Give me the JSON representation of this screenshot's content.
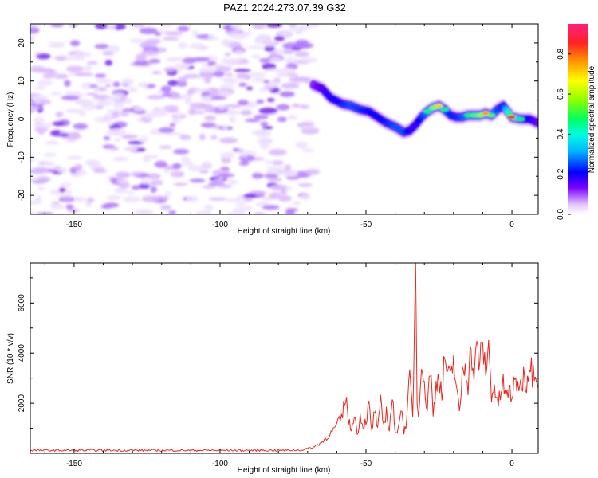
{
  "title": "PAZ1.2024.273.07.39.G32",
  "chart_data": [
    {
      "type": "heatmap",
      "xlabel": "Height of straight line (km)",
      "ylabel": "Frequency (Hz)",
      "xlim": [
        -165,
        9
      ],
      "ylim": [
        -25,
        25
      ],
      "xticks": [
        -150,
        -100,
        -50,
        0
      ],
      "yticks": [
        -20,
        -10,
        0,
        10,
        20
      ],
      "colorbar": {
        "label": "Normalized spectral amplitude",
        "range": [
          0.0,
          0.95
        ],
        "ticks": [
          0.0,
          0.2,
          0.4,
          0.6,
          0.8
        ]
      },
      "noise_region_x": [
        -165,
        -68
      ],
      "ridge": {
        "x": [
          -68,
          -65,
          -62,
          -58,
          -55,
          -52,
          -49,
          -46,
          -43,
          -40,
          -37,
          -35,
          -33,
          -31,
          -29,
          -27,
          -25,
          -23,
          -21,
          -19,
          -17,
          -15,
          -13,
          -11,
          -9,
          -7,
          -5,
          -3,
          0,
          3,
          6,
          9
        ],
        "frequency": [
          9.0,
          8.0,
          5.5,
          4.0,
          3.5,
          2.5,
          2.0,
          0.5,
          -1.0,
          -2.0,
          -3.5,
          -3.0,
          -1.5,
          0.5,
          2.0,
          3.0,
          3.5,
          2.5,
          1.0,
          0.5,
          0.5,
          1.0,
          1.0,
          1.0,
          1.5,
          1.0,
          2.5,
          3.5,
          0.5,
          0.0,
          0.0,
          -1.0
        ],
        "amplitude": [
          0.2,
          0.28,
          0.35,
          0.4,
          0.45,
          0.42,
          0.38,
          0.35,
          0.4,
          0.45,
          0.45,
          0.35,
          0.3,
          0.4,
          0.5,
          0.6,
          0.75,
          0.5,
          0.4,
          0.4,
          0.45,
          0.5,
          0.55,
          0.6,
          0.8,
          0.55,
          0.45,
          0.4,
          0.9,
          0.5,
          0.35,
          0.25
        ]
      }
    },
    {
      "type": "line",
      "xlabel": "Height of straight line (km)",
      "ylabel": "SNR (10 * v/v)",
      "xlim": [
        -165,
        9
      ],
      "ylim": [
        0,
        7600
      ],
      "xticks": [
        -150,
        -100,
        -50,
        0
      ],
      "yticks": [
        2000,
        4000,
        6000
      ],
      "color": "#e8281e",
      "series": [
        {
          "x": [
            -165,
            -120,
            -80,
            -72,
            -68,
            -65,
            -62,
            -60,
            -58,
            -57,
            -56,
            -55,
            -54,
            -53,
            -52,
            -51,
            -50,
            -49,
            -48,
            -47,
            -46,
            -45,
            -44,
            -43,
            -42,
            -41,
            -40,
            -39,
            -38,
            -37,
            -36,
            -35,
            -34,
            -33,
            -32.5,
            -32,
            -31,
            -30,
            -29,
            -28,
            -27,
            -26,
            -25,
            -24,
            -23,
            -22,
            -21,
            -20,
            -19,
            -18,
            -17,
            -16,
            -15,
            -14,
            -13,
            -12,
            -11,
            -10,
            -9,
            -8,
            -7,
            -6,
            -5,
            -4,
            -3,
            -2,
            -1,
            0,
            1,
            2,
            3,
            4,
            5,
            6,
            7,
            8,
            9
          ],
          "values": [
            120,
            120,
            120,
            130,
            250,
            450,
            800,
            1100,
            1500,
            2400,
            1300,
            900,
            1700,
            700,
            1500,
            1100,
            1300,
            1900,
            800,
            1800,
            900,
            2000,
            1100,
            1700,
            900,
            2300,
            700,
            1100,
            1800,
            900,
            1300,
            3100,
            1500,
            7600,
            2100,
            1600,
            3900,
            2500,
            1900,
            3500,
            1500,
            2700,
            3300,
            2200,
            3900,
            3100,
            2900,
            3700,
            2700,
            1500,
            3200,
            3700,
            2800,
            4300,
            3000,
            4200,
            3600,
            4300,
            3300,
            4200,
            2400,
            2700,
            1900,
            2300,
            2800,
            2100,
            2600,
            2300,
            2700,
            2900,
            2600,
            3200,
            2800,
            3700,
            3200,
            3600,
            2600
          ]
        }
      ]
    }
  ]
}
